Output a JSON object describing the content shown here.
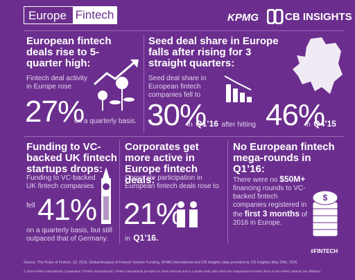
{
  "header": {
    "title_left": "Europe",
    "title_right": "Fintech",
    "logo_1": "KPMG",
    "logo_2": "CB INSIGHTS"
  },
  "panels": [
    {
      "title": "European fintech deals rise to 5-quarter high:",
      "text": "Fintech deal activity in Europe rose",
      "figure": "27%",
      "after": "on a quarterly basis."
    },
    {
      "title": "Seed deal share in Europe falls after rising for 3 straight quarters:",
      "text": "Seed deal share in European fintech companies fell to",
      "figure": "30%",
      "in_1": "in",
      "quarter": "Q1’16",
      "middle": "after hitting",
      "figure_2": "46%",
      "in_2": "in",
      "quarter_2": "Q4’15"
    },
    {
      "title": "Funding to VC-backed UK fintech startups drops:",
      "text": "Funding to VC-backed UK fintech companies",
      "before": "fell",
      "figure": "41%",
      "after": "on a quarterly basis, but still outpaced that of Germany."
    },
    {
      "title": "Corporates get more active in Europe fintech deals:",
      "text": "Corporate participation in European fintech deals rose to",
      "figure": "21%",
      "in_1": "in",
      "quarter": "Q1’16."
    },
    {
      "title": "No European fintech mega-rounds in Q1’16:",
      "text_1": "There were no",
      "highlight": "$50M+",
      "text_2": "financing rounds to VC-backed fintech companies registered in the",
      "highlight_2": "first 3 months",
      "text_3": "of 2016 in Europe."
    }
  ],
  "footer": {
    "hashtag": "#FINTECH",
    "source": "Source: The Pulse of Fintech, Q1 2016, Global Analysis of Fintech Venture Funding, KPMG International and CB Insights (data provided by CB Insights) May 25th, 2016.",
    "copyright": "© 2016 KPMG International Cooperative (“KPMG International”). KPMG International provides no client services and is a Swiss entity with which the independent member firms of the KPMG network are affiliated."
  }
}
